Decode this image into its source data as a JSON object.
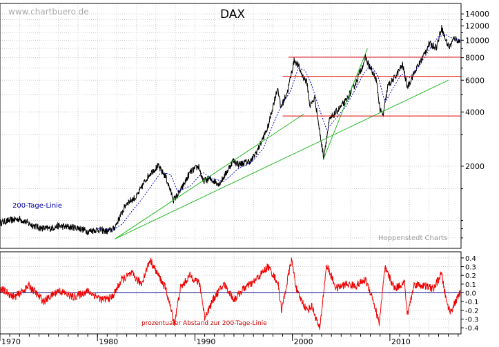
{
  "watermark": "www.chartbuero.de",
  "credit": "Hoppenstedt Charts",
  "colors": {
    "price": "#000000",
    "ma200": "#0000cc",
    "trend": "#22bb22",
    "resistance": "#dd0000",
    "oscillator": "#ee0000",
    "grid": "#cccccc",
    "axis": "#000000",
    "zero": "#000080"
  },
  "chart_data": [
    {
      "type": "line",
      "title": "DAX",
      "yscale": "log",
      "ylim": [
        700,
        16000
      ],
      "xlim": [
        1970,
        2017.3
      ],
      "x_ticks": [
        1970,
        1980,
        1990,
        2000,
        2010
      ],
      "y_ticks": [
        2000,
        4000,
        6000,
        8000,
        10000,
        12000,
        14000
      ],
      "legend_label": "200-Tage-Linie",
      "series": [
        {
          "key": "price",
          "x": [
            1970.0,
            1971.0,
            1972.0,
            1973.0,
            1974.0,
            1975.0,
            1976.0,
            1977.0,
            1978.0,
            1979.0,
            1980.0,
            1981.0,
            1981.7,
            1982.2,
            1983.0,
            1984.0,
            1985.0,
            1985.5,
            1986.2,
            1987.0,
            1987.8,
            1988.5,
            1989.5,
            1990.4,
            1990.8,
            1991.5,
            1992.5,
            1993.0,
            1993.9,
            1994.5,
            1995.2,
            1995.8,
            1996.5,
            1997.5,
            1998.0,
            1998.5,
            1998.8,
            1999.5,
            2000.2,
            2000.6,
            2001.0,
            2001.5,
            2001.8,
            2002.3,
            2002.8,
            2003.2,
            2003.8,
            2004.5,
            2005.5,
            2006.5,
            2007.0,
            2007.5,
            2008.0,
            2008.6,
            2009.0,
            2009.3,
            2009.8,
            2010.5,
            2011.3,
            2011.8,
            2012.5,
            2013.3,
            2014.0,
            2014.8,
            2015.3,
            2015.7,
            2016.1,
            2016.6,
            2017.2
          ],
          "y": [
            970,
            1000,
            1020,
            960,
            910,
            900,
            930,
            920,
            910,
            870,
            890,
            870,
            900,
            1020,
            1250,
            1350,
            1700,
            1850,
            2000,
            1750,
            1300,
            1450,
            1850,
            2000,
            1650,
            1700,
            1600,
            1750,
            2150,
            2050,
            2100,
            2150,
            2500,
            3300,
            4300,
            5500,
            4200,
            5200,
            7800,
            7200,
            6400,
            5800,
            4300,
            4800,
            3100,
            2250,
            3600,
            4000,
            4600,
            5800,
            6800,
            8000,
            7000,
            6000,
            4100,
            3800,
            5600,
            6200,
            7300,
            5500,
            6600,
            7900,
            9500,
            9200,
            11800,
            10100,
            9100,
            10300,
            9800
          ]
        },
        {
          "key": "ma200",
          "x": [
            1980.0,
            1981.5,
            1982.5,
            1983.5,
            1984.5,
            1985.5,
            1986.5,
            1987.5,
            1988.2,
            1989.5,
            1990.8,
            1991.8,
            1993.0,
            1994.5,
            1995.8,
            1997.0,
            1998.0,
            1998.9,
            1999.8,
            2000.6,
            2001.3,
            2002.0,
            2002.8,
            2003.5,
            2004.5,
            2005.5,
            2006.5,
            2007.3,
            2008.0,
            2008.8,
            2009.5,
            2010.3,
            2011.2,
            2012.0,
            2013.0,
            2014.0,
            2015.0,
            2015.8,
            2016.6,
            2017.2
          ],
          "y": [
            900,
            880,
            950,
            1120,
            1300,
            1550,
            1850,
            1800,
            1450,
            1550,
            1850,
            1700,
            1650,
            1950,
            2100,
            2500,
            3400,
            4400,
            5200,
            7000,
            6800,
            5600,
            4100,
            3200,
            3700,
            4300,
            5400,
            6500,
            7300,
            6300,
            4500,
            5400,
            6500,
            6200,
            7200,
            8800,
            10500,
            10700,
            10100,
            10000
          ]
        },
        {
          "key": "trend1",
          "x": [
            1981.8,
            2001.2
          ],
          "y": [
            790,
            3900
          ]
        },
        {
          "key": "trend2",
          "x": [
            1981.8,
            2016.0
          ],
          "y": [
            790,
            6000
          ]
        },
        {
          "key": "trend3",
          "x": [
            2003.2,
            2007.7
          ],
          "y": [
            2200,
            9000
          ]
        },
        {
          "key": "res8000",
          "x": [
            1999.6,
            2017.3
          ],
          "y": [
            8050,
            8050
          ]
        },
        {
          "key": "res6300",
          "x": [
            1999.0,
            2017.3
          ],
          "y": [
            6300,
            6300
          ]
        },
        {
          "key": "sup3800",
          "x": [
            1999.0,
            2017.3
          ],
          "y": [
            3800,
            3800
          ]
        }
      ]
    },
    {
      "type": "line",
      "title": "prozentualer Abstand zur 200-Tage-Linie",
      "ylim": [
        -0.47,
        0.47
      ],
      "xlim": [
        1970,
        2017.3
      ],
      "y_ticks": [
        -0.4,
        -0.3,
        -0.2,
        -0.1,
        0.0,
        0.1,
        0.2,
        0.3,
        0.4
      ],
      "series": [
        {
          "key": "osc",
          "x": [
            1970.0,
            1971.5,
            1973.0,
            1974.5,
            1976.0,
            1977.5,
            1979.0,
            1980.5,
            1981.5,
            1982.5,
            1983.5,
            1984.5,
            1985.4,
            1986.0,
            1987.0,
            1987.9,
            1988.5,
            1989.5,
            1990.5,
            1991.0,
            1992.0,
            1993.0,
            1994.0,
            1995.0,
            1996.0,
            1997.5,
            1998.5,
            1998.9,
            1999.9,
            2000.5,
            2001.5,
            2002.0,
            2002.8,
            2003.5,
            2004.5,
            2005.5,
            2006.5,
            2007.5,
            2008.2,
            2008.9,
            2009.5,
            2010.5,
            2011.5,
            2011.8,
            2012.5,
            2013.5,
            2014.5,
            2015.3,
            2015.8,
            2016.2,
            2017.2
          ],
          "y": [
            0.05,
            -0.05,
            0.08,
            -0.1,
            0.03,
            -0.05,
            0.02,
            -0.08,
            -0.05,
            0.15,
            0.22,
            0.1,
            0.38,
            0.25,
            0.05,
            -0.35,
            0.05,
            0.2,
            0.1,
            -0.28,
            -0.05,
            0.1,
            -0.08,
            0.05,
            0.12,
            0.3,
            0.12,
            -0.2,
            0.38,
            0.0,
            -0.2,
            -0.15,
            -0.42,
            0.32,
            0.05,
            0.1,
            0.08,
            0.15,
            -0.05,
            -0.35,
            0.28,
            0.05,
            0.12,
            -0.25,
            0.1,
            0.08,
            0.05,
            0.22,
            -0.1,
            -0.22,
            0.0
          ]
        }
      ]
    }
  ]
}
